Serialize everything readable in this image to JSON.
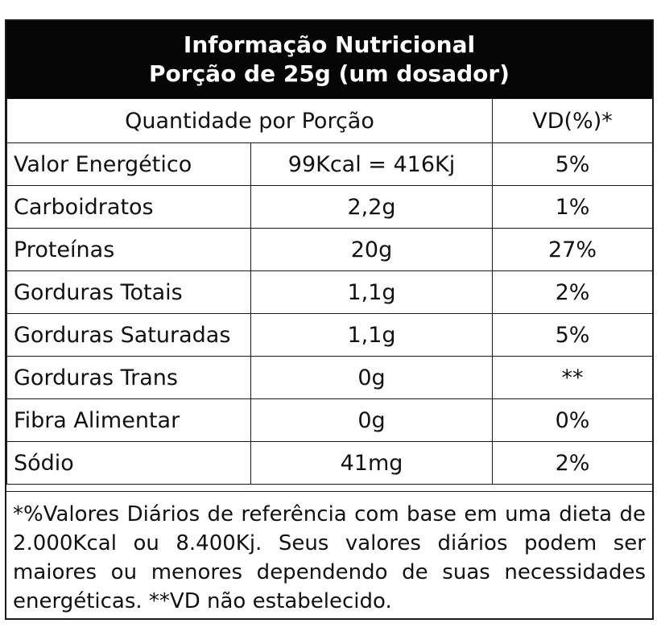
{
  "header": {
    "title": "Informação Nutricional",
    "portion": "Porção de 25g (um dosador)"
  },
  "columns": {
    "quantity": "Quantidade por Porção",
    "dv": "VD(%)*"
  },
  "rows": [
    {
      "nutrient": "Valor Energético",
      "amount": "99Kcal = 416Kj",
      "dv": "5%"
    },
    {
      "nutrient": "Carboidratos",
      "amount": "2,2g",
      "dv": "1%"
    },
    {
      "nutrient": "Proteínas",
      "amount": "20g",
      "dv": "27%"
    },
    {
      "nutrient": "Gorduras Totais",
      "amount": "1,1g",
      "dv": "2%"
    },
    {
      "nutrient": "Gorduras Saturadas",
      "amount": "1,1g",
      "dv": "5%"
    },
    {
      "nutrient": "Gorduras Trans",
      "amount": "0g",
      "dv": "**"
    },
    {
      "nutrient": "Fibra Alimentar",
      "amount": "0g",
      "dv": "0%"
    },
    {
      "nutrient": "Sódio",
      "amount": "41mg",
      "dv": "2%"
    }
  ],
  "footnote": "*%Valores Diários de referência com base em uma dieta de 2.000Kcal ou 8.400Kj. Seus valores diários podem ser maiores ou menores dependendo de suas necessidades energéticas. **VD não estabelecido."
}
